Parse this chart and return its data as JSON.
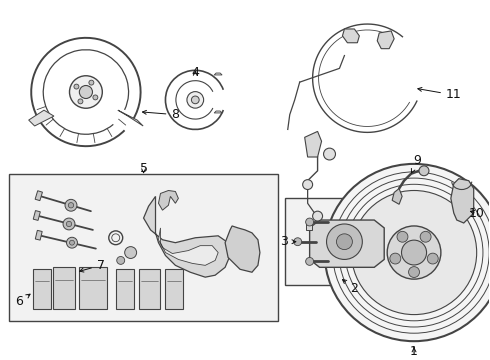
{
  "bg_color": "#ffffff",
  "lc": "#444444",
  "lc2": "#666666",
  "font_size": 9,
  "figsize": [
    4.9,
    3.6
  ],
  "dpi": 100
}
